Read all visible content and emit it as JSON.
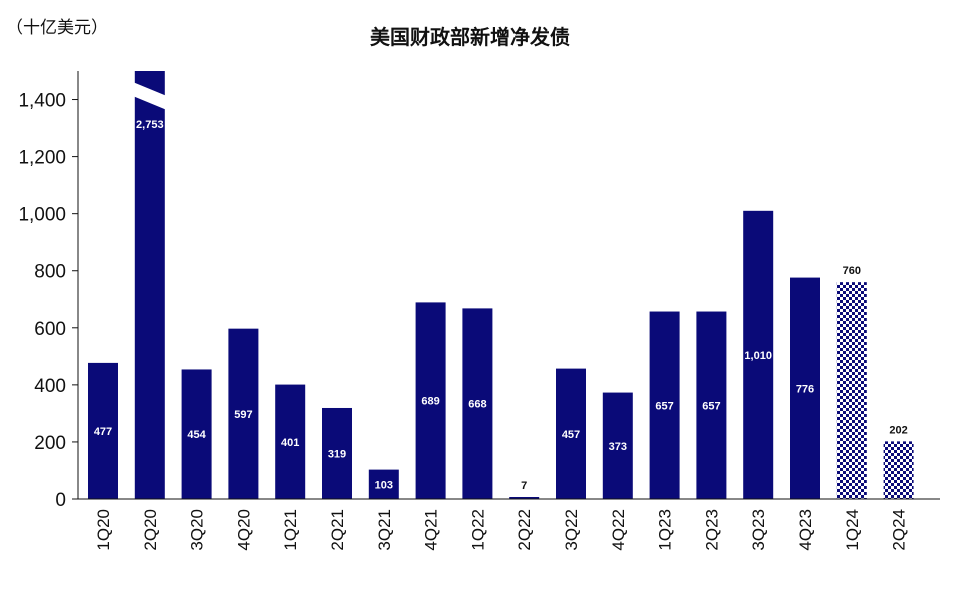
{
  "chart_data": {
    "type": "bar",
    "title": "美国财政部新增净发债",
    "unit_label": "（十亿美元）",
    "categories": [
      "1Q20",
      "2Q20",
      "3Q20",
      "4Q20",
      "1Q21",
      "2Q21",
      "3Q21",
      "4Q21",
      "1Q22",
      "2Q22",
      "3Q22",
      "4Q22",
      "1Q23",
      "2Q23",
      "3Q23",
      "4Q23",
      "1Q24",
      "2Q24"
    ],
    "values": [
      477,
      2753,
      454,
      597,
      401,
      319,
      103,
      689,
      668,
      7,
      457,
      373,
      657,
      657,
      1010,
      776,
      760,
      202
    ],
    "data_labels": [
      "477",
      "2,753",
      "454",
      "597",
      "401",
      "319",
      "103",
      "689",
      "668",
      "7",
      "457",
      "373",
      "657",
      "657",
      "1,010",
      "776",
      "760",
      "202"
    ],
    "projected": [
      false,
      false,
      false,
      false,
      false,
      false,
      false,
      false,
      false,
      false,
      false,
      false,
      false,
      false,
      false,
      false,
      true,
      true
    ],
    "label_outside": [
      false,
      false,
      false,
      false,
      false,
      false,
      false,
      false,
      false,
      true,
      false,
      false,
      false,
      false,
      false,
      false,
      true,
      true
    ],
    "axis_break_categories": [
      "2Q20"
    ],
    "ylim": [
      0,
      1500
    ],
    "yticks": [
      0,
      200,
      400,
      600,
      800,
      1000,
      1200,
      1400
    ],
    "ytick_labels": [
      "0",
      "200",
      "400",
      "600",
      "800",
      "1,000",
      "1,200",
      "1,400"
    ],
    "xlabel": "",
    "ylabel": "",
    "grid": false,
    "colors": {
      "bar": "#0a0a78",
      "text": "#111111",
      "axis": "#111111"
    }
  }
}
